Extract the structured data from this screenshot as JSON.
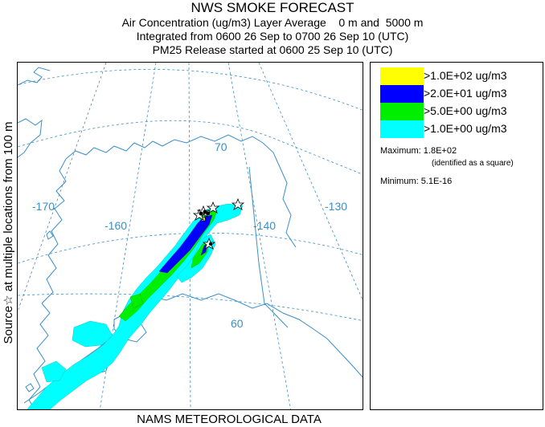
{
  "header": {
    "title": "NWS SMOKE FORECAST",
    "line2": "Air Concentration (ug/m3) Layer Average    0 m and  5000 m",
    "line3": "Integrated from 0600 26 Sep to 0700 26 Sep 10 (UTC)",
    "line4": "PM25 Release started at 0600 25 Sep 10 (UTC)"
  },
  "side_label": "Source☆  at multiple locations   from   100 m",
  "bottom_label": "NAMS METEOROLOGICAL DATA",
  "map": {
    "latitude_labels": [
      "70",
      "60"
    ],
    "longitude_labels": [
      "-170",
      "-160",
      "-140",
      "-130"
    ],
    "colors": {
      "grid": "#3a8fc8",
      "coast": "#3a8fc8",
      "level_1": "#ffff00",
      "level_2": "#0000ff",
      "level_3": "#00ee00",
      "level_4": "#00ffff"
    }
  },
  "legend": {
    "items": [
      {
        "label": ">1.0E+02 ug/m3",
        "color": "#ffff00"
      },
      {
        "label": ">2.0E+01 ug/m3",
        "color": "#0000ff"
      },
      {
        "label": ">5.0E+00 ug/m3",
        "color": "#00ee00"
      },
      {
        "label": ">1.0E+00 ug/m3",
        "color": "#00ffff"
      }
    ],
    "maximum": "Maximum: 1.8E+02",
    "maximum_note": "(identified as a square)",
    "minimum": "Minimum: 5.1E-16"
  }
}
